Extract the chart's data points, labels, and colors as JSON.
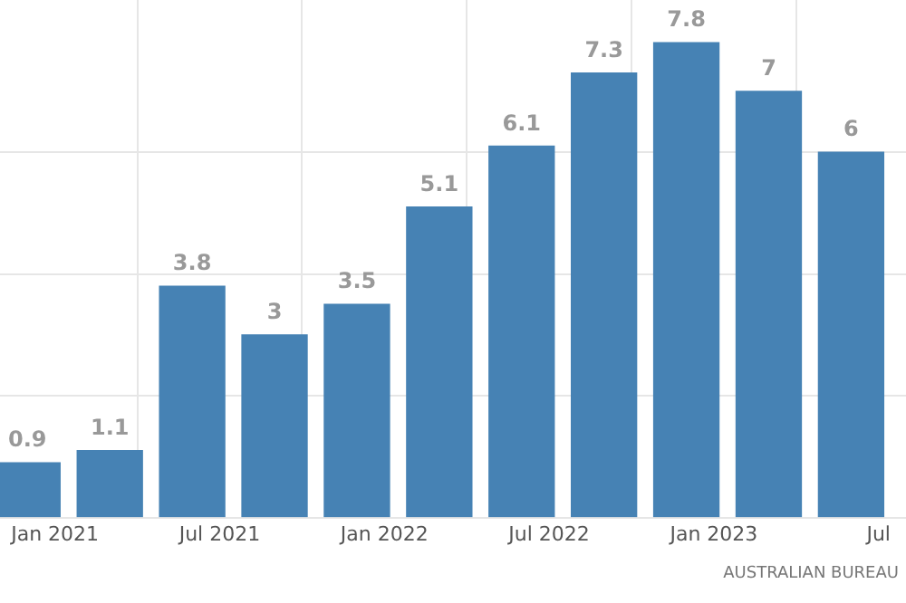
{
  "chart_data": {
    "type": "bar",
    "x": [
      "2020-12",
      "2021-03",
      "2021-06",
      "2021-09",
      "2021-12",
      "2022-03",
      "2022-06",
      "2022-09",
      "2022-12",
      "2023-03",
      "2023-06"
    ],
    "values": [
      0.9,
      1.1,
      3.8,
      3,
      3.5,
      5.1,
      6.1,
      7.3,
      7.8,
      7,
      6
    ],
    "color": "#4682b4",
    "xlim": [
      "2020-11",
      "2023-08"
    ],
    "xticks": [
      {
        "value": "2021-01",
        "label": "Jan 2021"
      },
      {
        "value": "2021-07",
        "label": "Jul 2021"
      },
      {
        "value": "2022-01",
        "label": "Jan 2022"
      },
      {
        "value": "2022-07",
        "label": "Jul 2022"
      },
      {
        "value": "2023-01",
        "label": "Jan 2023"
      },
      {
        "value": "2023-07",
        "label": "Jul"
      }
    ],
    "ylim": [
      0,
      8.5
    ],
    "yticks": [
      {
        "value": 0,
        "label": null
      },
      {
        "value": 2,
        "label": null
      },
      {
        "value": 4,
        "label": null
      },
      {
        "value": 6,
        "label": null
      }
    ],
    "grid": true,
    "tick_labels": "x",
    "data_labels": true,
    "annotations": [
      "AUSTRALIAN BUREAU"
    ]
  }
}
